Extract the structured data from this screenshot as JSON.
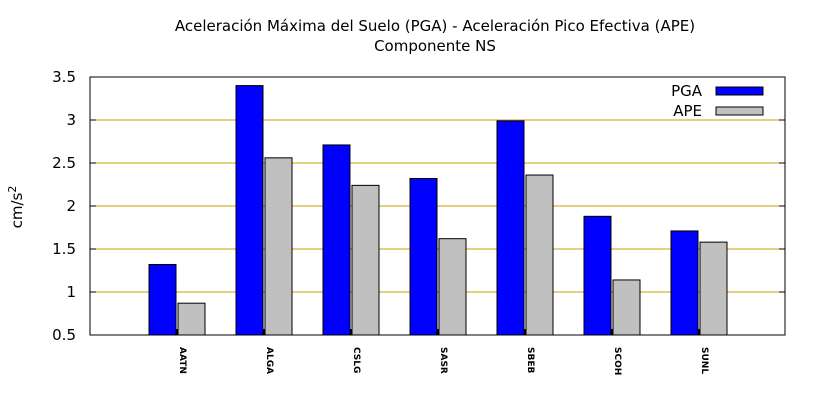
{
  "chart_data": {
    "type": "bar",
    "title": "Aceleración Máxima del Suelo (PGA) -  Aceleración Pico Efectiva (APE)",
    "subtitle": "Componente NS",
    "ylabel": "cm/s",
    "ylabel_superscript": "2",
    "ylim": [
      0.5,
      3.5
    ],
    "yticks": [
      0.5,
      1,
      1.5,
      2,
      2.5,
      3,
      3.5
    ],
    "grid": true,
    "legend_position": "top-right",
    "categories": [
      "AATN",
      "ALGA",
      "CSLG",
      "SASR",
      "SBEB",
      "SCOH",
      "SUNL"
    ],
    "series": [
      {
        "name": "PGA",
        "color": "#0000ff",
        "values": [
          1.32,
          3.4,
          2.71,
          2.32,
          2.99,
          1.88,
          1.71
        ]
      },
      {
        "name": "APE",
        "color": "#c0c0c0",
        "values": [
          0.87,
          2.56,
          2.24,
          1.62,
          2.36,
          1.14,
          1.58
        ]
      }
    ],
    "grid_color": "#c8a000"
  }
}
